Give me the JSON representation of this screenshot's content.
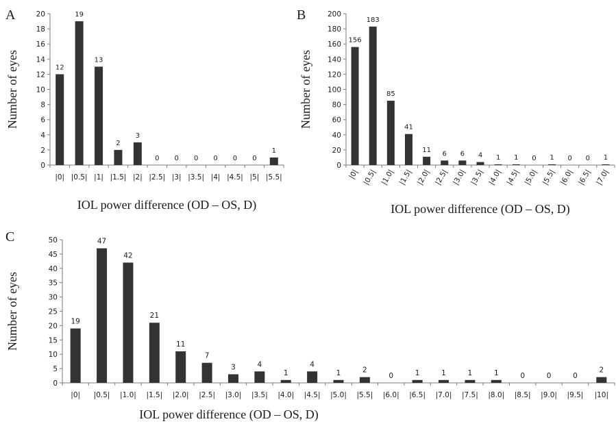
{
  "chart_data": [
    {
      "panel": "A",
      "type": "bar",
      "xlabel": "IOL power difference (OD – OS, D)",
      "ylabel": "Number of eyes",
      "categories": [
        "|0|",
        "|0.5|",
        "|1|",
        "|1.5|",
        "|2|",
        "|2.5|",
        "|3|",
        "|3.5|",
        "|4|",
        "|4.5|",
        "|5|",
        "|5.5|"
      ],
      "values": [
        12,
        19,
        13,
        2,
        3,
        0,
        0,
        0,
        0,
        0,
        0,
        1
      ],
      "ylim": [
        0,
        20
      ],
      "yticks": [
        0,
        2,
        4,
        6,
        8,
        10,
        12,
        14,
        16,
        18,
        20
      ],
      "bar_color": "#333333",
      "grid": false,
      "legend": "none"
    },
    {
      "panel": "B",
      "type": "bar",
      "xlabel": "IOL power difference (OD – OS, D)",
      "ylabel": "Number of eyes",
      "categories": [
        "|0|",
        "|0.5|",
        "|1.0|",
        "|1.5|",
        "|2.0|",
        "|2.5|",
        "|3.0|",
        "|3.5|",
        "|4.0|",
        "|4.5|",
        "|5.0|",
        "|5.5|",
        "|6.0|",
        "|6.5|",
        "|7.0|"
      ],
      "values": [
        156,
        183,
        85,
        41,
        11,
        6,
        6,
        4,
        1,
        1,
        0,
        1,
        0,
        0,
        1
      ],
      "ylim": [
        0,
        200
      ],
      "yticks": [
        0,
        20,
        40,
        60,
        80,
        100,
        120,
        140,
        160,
        180,
        200
      ],
      "bar_color": "#333333",
      "grid": false,
      "legend": "none"
    },
    {
      "panel": "C",
      "type": "bar",
      "xlabel": "IOL power difference (OD – OS, D)",
      "ylabel": "Number of eyes",
      "categories": [
        "|0|",
        "|0.5|",
        "|1.0|",
        "|1.5|",
        "|2.0|",
        "|2.5|",
        "|3.0|",
        "|3.5|",
        "|4.0|",
        "|4.5|",
        "|5.0|",
        "|5.5|",
        "|6.0|",
        "|6.5|",
        "|7.0|",
        "|7.5|",
        "|8.0|",
        "|8.5|",
        "|9.0|",
        "|9.5|",
        "|10|"
      ],
      "values": [
        19,
        47,
        42,
        21,
        11,
        7,
        3,
        4,
        1,
        4,
        1,
        2,
        0,
        1,
        1,
        1,
        1,
        0,
        0,
        0,
        2
      ],
      "ylim": [
        0,
        50
      ],
      "yticks": [
        0,
        5,
        10,
        15,
        20,
        25,
        30,
        35,
        40,
        45,
        50
      ],
      "bar_color": "#333333",
      "grid": false,
      "legend": "none"
    }
  ]
}
